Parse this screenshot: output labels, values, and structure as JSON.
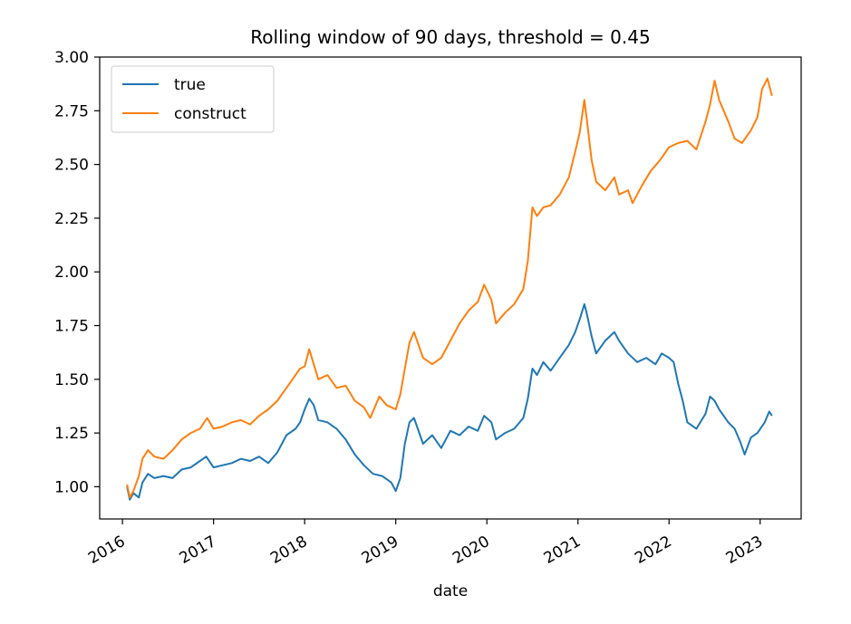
{
  "chart_data": {
    "type": "line",
    "title": "Rolling window of 90 days, threshold = 0.45",
    "xlabel": "date",
    "ylabel": "",
    "xlim": [
      2015.75,
      2023.45
    ],
    "ylim": [
      0.85,
      3.0
    ],
    "xticks": [
      2016,
      2017,
      2018,
      2019,
      2020,
      2021,
      2022,
      2023
    ],
    "yticks": [
      1.0,
      1.25,
      1.5,
      1.75,
      2.0,
      2.25,
      2.5,
      2.75,
      3.0
    ],
    "ytick_labels": [
      "1.00",
      "1.25",
      "1.50",
      "1.75",
      "2.00",
      "2.25",
      "2.50",
      "2.75",
      "3.00"
    ],
    "legend_position": "top-left",
    "grid": false,
    "series": [
      {
        "name": "true",
        "color": "#1f77b4",
        "points": [
          [
            2016.05,
            1.0
          ],
          [
            2016.08,
            0.94
          ],
          [
            2016.12,
            0.97
          ],
          [
            2016.18,
            0.95
          ],
          [
            2016.22,
            1.02
          ],
          [
            2016.28,
            1.06
          ],
          [
            2016.35,
            1.04
          ],
          [
            2016.45,
            1.05
          ],
          [
            2016.55,
            1.04
          ],
          [
            2016.65,
            1.08
          ],
          [
            2016.75,
            1.09
          ],
          [
            2016.85,
            1.12
          ],
          [
            2016.92,
            1.14
          ],
          [
            2017.0,
            1.09
          ],
          [
            2017.1,
            1.1
          ],
          [
            2017.2,
            1.11
          ],
          [
            2017.3,
            1.13
          ],
          [
            2017.4,
            1.12
          ],
          [
            2017.5,
            1.14
          ],
          [
            2017.6,
            1.11
          ],
          [
            2017.7,
            1.16
          ],
          [
            2017.8,
            1.24
          ],
          [
            2017.9,
            1.27
          ],
          [
            2017.95,
            1.3
          ],
          [
            2018.0,
            1.36
          ],
          [
            2018.05,
            1.41
          ],
          [
            2018.1,
            1.38
          ],
          [
            2018.15,
            1.31
          ],
          [
            2018.25,
            1.3
          ],
          [
            2018.35,
            1.27
          ],
          [
            2018.45,
            1.22
          ],
          [
            2018.55,
            1.15
          ],
          [
            2018.65,
            1.1
          ],
          [
            2018.75,
            1.06
          ],
          [
            2018.85,
            1.05
          ],
          [
            2018.95,
            1.02
          ],
          [
            2019.0,
            0.98
          ],
          [
            2019.05,
            1.04
          ],
          [
            2019.1,
            1.2
          ],
          [
            2019.15,
            1.3
          ],
          [
            2019.2,
            1.32
          ],
          [
            2019.3,
            1.2
          ],
          [
            2019.4,
            1.24
          ],
          [
            2019.5,
            1.18
          ],
          [
            2019.6,
            1.26
          ],
          [
            2019.7,
            1.24
          ],
          [
            2019.8,
            1.28
          ],
          [
            2019.9,
            1.26
          ],
          [
            2019.97,
            1.33
          ],
          [
            2020.05,
            1.3
          ],
          [
            2020.1,
            1.22
          ],
          [
            2020.2,
            1.25
          ],
          [
            2020.3,
            1.27
          ],
          [
            2020.4,
            1.32
          ],
          [
            2020.45,
            1.41
          ],
          [
            2020.5,
            1.55
          ],
          [
            2020.55,
            1.52
          ],
          [
            2020.62,
            1.58
          ],
          [
            2020.7,
            1.54
          ],
          [
            2020.8,
            1.6
          ],
          [
            2020.9,
            1.66
          ],
          [
            2020.97,
            1.72
          ],
          [
            2021.02,
            1.78
          ],
          [
            2021.07,
            1.85
          ],
          [
            2021.1,
            1.8
          ],
          [
            2021.15,
            1.7
          ],
          [
            2021.2,
            1.62
          ],
          [
            2021.3,
            1.68
          ],
          [
            2021.4,
            1.72
          ],
          [
            2021.45,
            1.68
          ],
          [
            2021.55,
            1.62
          ],
          [
            2021.65,
            1.58
          ],
          [
            2021.75,
            1.6
          ],
          [
            2021.85,
            1.57
          ],
          [
            2021.92,
            1.62
          ],
          [
            2022.0,
            1.6
          ],
          [
            2022.05,
            1.58
          ],
          [
            2022.1,
            1.48
          ],
          [
            2022.15,
            1.4
          ],
          [
            2022.2,
            1.3
          ],
          [
            2022.3,
            1.27
          ],
          [
            2022.4,
            1.34
          ],
          [
            2022.45,
            1.42
          ],
          [
            2022.5,
            1.4
          ],
          [
            2022.55,
            1.36
          ],
          [
            2022.65,
            1.3
          ],
          [
            2022.72,
            1.27
          ],
          [
            2022.78,
            1.21
          ],
          [
            2022.83,
            1.15
          ],
          [
            2022.9,
            1.23
          ],
          [
            2022.97,
            1.25
          ],
          [
            2023.05,
            1.3
          ],
          [
            2023.1,
            1.35
          ],
          [
            2023.13,
            1.33
          ]
        ]
      },
      {
        "name": "construct",
        "color": "#ff7f0e",
        "points": [
          [
            2016.05,
            1.01
          ],
          [
            2016.08,
            0.95
          ],
          [
            2016.12,
            0.98
          ],
          [
            2016.18,
            1.05
          ],
          [
            2016.22,
            1.13
          ],
          [
            2016.28,
            1.17
          ],
          [
            2016.35,
            1.14
          ],
          [
            2016.45,
            1.13
          ],
          [
            2016.55,
            1.17
          ],
          [
            2016.65,
            1.22
          ],
          [
            2016.75,
            1.25
          ],
          [
            2016.85,
            1.27
          ],
          [
            2016.93,
            1.32
          ],
          [
            2017.0,
            1.27
          ],
          [
            2017.1,
            1.28
          ],
          [
            2017.2,
            1.3
          ],
          [
            2017.3,
            1.31
          ],
          [
            2017.4,
            1.29
          ],
          [
            2017.5,
            1.33
          ],
          [
            2017.6,
            1.36
          ],
          [
            2017.7,
            1.4
          ],
          [
            2017.8,
            1.46
          ],
          [
            2017.9,
            1.52
          ],
          [
            2017.95,
            1.55
          ],
          [
            2018.0,
            1.56
          ],
          [
            2018.05,
            1.64
          ],
          [
            2018.1,
            1.57
          ],
          [
            2018.15,
            1.5
          ],
          [
            2018.25,
            1.52
          ],
          [
            2018.35,
            1.46
          ],
          [
            2018.45,
            1.47
          ],
          [
            2018.55,
            1.4
          ],
          [
            2018.65,
            1.37
          ],
          [
            2018.72,
            1.32
          ],
          [
            2018.82,
            1.42
          ],
          [
            2018.9,
            1.38
          ],
          [
            2019.0,
            1.36
          ],
          [
            2019.05,
            1.43
          ],
          [
            2019.1,
            1.55
          ],
          [
            2019.15,
            1.67
          ],
          [
            2019.2,
            1.72
          ],
          [
            2019.3,
            1.6
          ],
          [
            2019.4,
            1.57
          ],
          [
            2019.5,
            1.6
          ],
          [
            2019.6,
            1.68
          ],
          [
            2019.7,
            1.76
          ],
          [
            2019.8,
            1.82
          ],
          [
            2019.9,
            1.86
          ],
          [
            2019.97,
            1.94
          ],
          [
            2020.05,
            1.87
          ],
          [
            2020.1,
            1.76
          ],
          [
            2020.2,
            1.81
          ],
          [
            2020.3,
            1.85
          ],
          [
            2020.4,
            1.92
          ],
          [
            2020.45,
            2.05
          ],
          [
            2020.5,
            2.3
          ],
          [
            2020.55,
            2.26
          ],
          [
            2020.62,
            2.3
          ],
          [
            2020.7,
            2.31
          ],
          [
            2020.8,
            2.36
          ],
          [
            2020.9,
            2.44
          ],
          [
            2020.97,
            2.56
          ],
          [
            2021.02,
            2.65
          ],
          [
            2021.07,
            2.8
          ],
          [
            2021.1,
            2.7
          ],
          [
            2021.15,
            2.52
          ],
          [
            2021.2,
            2.42
          ],
          [
            2021.3,
            2.38
          ],
          [
            2021.4,
            2.44
          ],
          [
            2021.45,
            2.36
          ],
          [
            2021.55,
            2.38
          ],
          [
            2021.6,
            2.32
          ],
          [
            2021.7,
            2.4
          ],
          [
            2021.8,
            2.47
          ],
          [
            2021.9,
            2.52
          ],
          [
            2022.0,
            2.58
          ],
          [
            2022.1,
            2.6
          ],
          [
            2022.2,
            2.61
          ],
          [
            2022.3,
            2.57
          ],
          [
            2022.4,
            2.7
          ],
          [
            2022.45,
            2.78
          ],
          [
            2022.5,
            2.89
          ],
          [
            2022.55,
            2.8
          ],
          [
            2022.65,
            2.7
          ],
          [
            2022.72,
            2.62
          ],
          [
            2022.8,
            2.6
          ],
          [
            2022.9,
            2.66
          ],
          [
            2022.97,
            2.72
          ],
          [
            2023.02,
            2.85
          ],
          [
            2023.08,
            2.9
          ],
          [
            2023.13,
            2.82
          ]
        ]
      }
    ]
  }
}
